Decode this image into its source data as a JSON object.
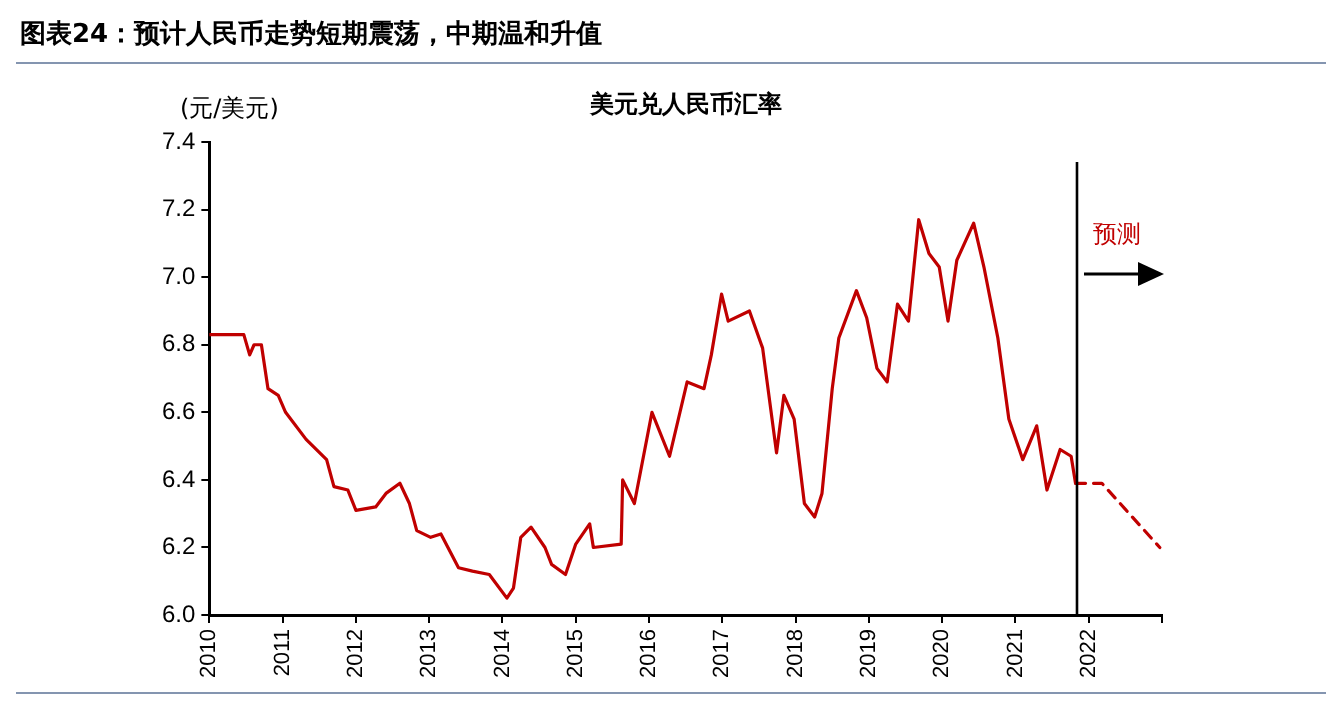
{
  "chart_data": {
    "type": "line",
    "title": "图表24：预计人民币走势短期震荡，中期温和升值",
    "subtitle": "美元兑人民币汇率",
    "ylabel": "(元/美元)",
    "annotations": [
      "预测"
    ],
    "series": [
      {
        "color": "#c00000",
        "line_style": "solid",
        "x": [
          2010.0,
          2010.47,
          2010.55,
          2010.61,
          2010.71,
          2010.8,
          2010.94,
          2011.04,
          2011.32,
          2011.6,
          2011.7,
          2011.89,
          2012.0,
          2012.27,
          2012.41,
          2012.6,
          2012.73,
          2012.83,
          2013.02,
          2013.16,
          2013.4,
          2013.59,
          2013.82,
          2014.06,
          2014.15,
          2014.25,
          2014.39,
          2014.58,
          2014.67,
          2014.86,
          2015.0,
          2015.19,
          2015.24,
          2015.62,
          2015.64,
          2015.8,
          2016.04,
          2016.28,
          2016.52,
          2016.75,
          2016.85,
          2016.99,
          2017.08,
          2017.37,
          2017.55,
          2017.74,
          2017.84,
          2017.98,
          2018.12,
          2018.26,
          2018.36,
          2018.5,
          2018.59,
          2018.83,
          2018.97,
          2019.11,
          2019.25,
          2019.39,
          2019.54,
          2019.68,
          2019.82,
          2019.96,
          2020.08,
          2020.2,
          2020.43,
          2020.57,
          2020.76,
          2020.91,
          2021.1,
          2021.29,
          2021.43,
          2021.61,
          2021.76,
          2021.82
        ],
        "values": [
          6.83,
          6.83,
          6.77,
          6.8,
          6.8,
          6.67,
          6.65,
          6.6,
          6.52,
          6.46,
          6.38,
          6.37,
          6.31,
          6.32,
          6.36,
          6.39,
          6.33,
          6.25,
          6.23,
          6.24,
          6.14,
          6.13,
          6.12,
          6.05,
          6.08,
          6.23,
          6.26,
          6.2,
          6.15,
          6.12,
          6.21,
          6.27,
          6.2,
          6.21,
          6.4,
          6.33,
          6.6,
          6.47,
          6.69,
          6.67,
          6.77,
          6.95,
          6.87,
          6.9,
          6.79,
          6.48,
          6.65,
          6.58,
          6.33,
          6.29,
          6.36,
          6.67,
          6.82,
          6.96,
          6.88,
          6.73,
          6.69,
          6.92,
          6.87,
          7.17,
          7.07,
          7.03,
          6.87,
          7.05,
          7.16,
          7.03,
          6.82,
          6.58,
          6.46,
          6.56,
          6.37,
          6.49,
          6.47,
          6.39
        ]
      },
      {
        "color": "#c00000",
        "line_style": "dashed",
        "x": [
          2021.82,
          2022.18,
          2022.97
        ],
        "values": [
          6.39,
          6.39,
          6.2
        ]
      }
    ],
    "xlim": [
      2010,
      2023
    ],
    "xticks": [
      2010,
      2011,
      2012,
      2013,
      2014,
      2015,
      2016,
      2017,
      2018,
      2019,
      2020,
      2021,
      2022,
      {
        "value": 2023,
        "label": null
      }
    ],
    "ylim": [
      6.0,
      7.4
    ],
    "yticks": [
      {
        "value": 6.0,
        "label": "6.0"
      },
      {
        "value": 6.2,
        "label": "6.2"
      },
      {
        "value": 6.4,
        "label": "6.4"
      },
      {
        "value": 6.6,
        "label": "6.6"
      },
      {
        "value": 6.8,
        "label": "6.8"
      },
      {
        "value": 7.0,
        "label": "7.0"
      },
      {
        "value": 7.2,
        "label": "7.2"
      },
      {
        "value": 7.4,
        "label": "7.4"
      }
    ],
    "ref_lines": [
      {
        "axis": "x",
        "value": 2021.84,
        "color": "#000000"
      }
    ],
    "grid": false,
    "legend": false,
    "marker": "none"
  }
}
